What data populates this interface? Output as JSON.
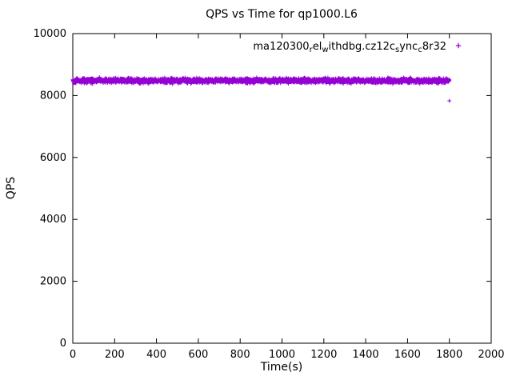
{
  "figure": {
    "title": "QPS vs Time for qp1000.L6",
    "xlabel": "Time(s)",
    "ylabel": "QPS"
  },
  "chart_data": {
    "type": "scatter",
    "title": "QPS vs Time for qp1000.L6",
    "xlabel": "Time(s)",
    "ylabel": "QPS",
    "xlim": [
      0,
      2000
    ],
    "ylim": [
      0,
      10000
    ],
    "xticks": [
      0,
      200,
      400,
      600,
      800,
      1000,
      1200,
      1400,
      1600,
      1800,
      2000
    ],
    "yticks": [
      0,
      2000,
      4000,
      6000,
      8000,
      10000
    ],
    "grid": false,
    "legend": {
      "position": "top-right",
      "label_raw": "ma120300_rel_withdbg.cz12c_sync_c8r32",
      "marker": "plus",
      "color": "#9400D3"
    },
    "series": [
      {
        "name": "ma120300_rel_withdbg.cz12c_sync_c8r32",
        "color": "#9400D3",
        "marker": "plus",
        "band": {
          "x_start": 0,
          "x_end": 1800,
          "x_step": 1.5,
          "points_per_x": 2,
          "mean": 8480,
          "noise": 120
        },
        "outliers": [
          [
            1800,
            7830
          ]
        ],
        "seed": 42
      }
    ]
  }
}
